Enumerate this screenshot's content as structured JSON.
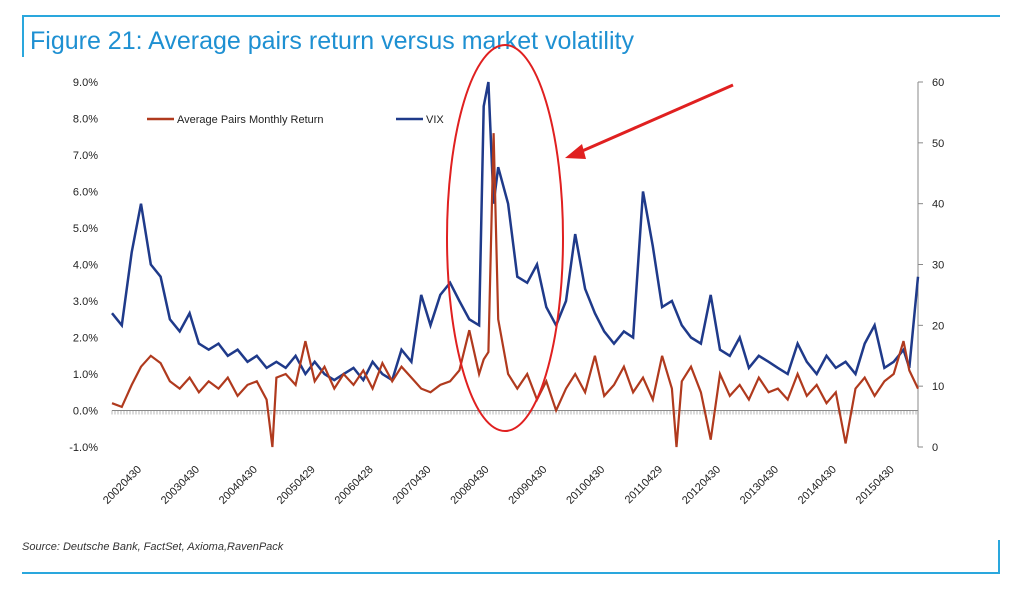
{
  "colors": {
    "accent": "#1e90d2",
    "pairs": "#b03a1e",
    "vix": "#1f3a8a",
    "annotation": "#e02020"
  },
  "chart_data": {
    "type": "line",
    "title": "Figure 21: Average pairs return versus market volatility",
    "source": "Source: Deutsche Bank, FactSet, Axioma,RavenPack",
    "x_tick_labels": [
      "20020430",
      "20030430",
      "20040430",
      "20050429",
      "20060428",
      "20070430",
      "20080430",
      "20090430",
      "20100430",
      "20110429",
      "20120430",
      "20130430",
      "20140430",
      "20150430"
    ],
    "y_left": {
      "ticks": [
        "-1.0%",
        "0.0%",
        "1.0%",
        "2.0%",
        "3.0%",
        "4.0%",
        "5.0%",
        "6.0%",
        "7.0%",
        "8.0%",
        "9.0%"
      ],
      "range": [
        -1.0,
        9.0
      ],
      "unit": "%"
    },
    "y_right": {
      "ticks": [
        "0",
        "10",
        "20",
        "30",
        "40",
        "50",
        "60"
      ],
      "range": [
        0,
        60
      ]
    },
    "x_range": [
      2002.33,
      2016.25
    ],
    "series": [
      {
        "name": "Average Pairs Monthly Return",
        "axis": "left",
        "x": [
          2002.33,
          2002.5,
          2002.67,
          2002.83,
          2003.0,
          2003.17,
          2003.33,
          2003.5,
          2003.67,
          2003.83,
          2004.0,
          2004.17,
          2004.33,
          2004.5,
          2004.67,
          2004.83,
          2005.0,
          2005.1,
          2005.17,
          2005.33,
          2005.5,
          2005.67,
          2005.83,
          2006.0,
          2006.17,
          2006.33,
          2006.5,
          2006.67,
          2006.83,
          2007.0,
          2007.17,
          2007.33,
          2007.5,
          2007.67,
          2007.83,
          2008.0,
          2008.17,
          2008.33,
          2008.5,
          2008.67,
          2008.75,
          2008.83,
          2008.92,
          2009.0,
          2009.17,
          2009.33,
          2009.5,
          2009.67,
          2009.83,
          2010.0,
          2010.17,
          2010.33,
          2010.5,
          2010.67,
          2010.83,
          2011.0,
          2011.17,
          2011.33,
          2011.5,
          2011.67,
          2011.83,
          2012.0,
          2012.08,
          2012.17,
          2012.33,
          2012.5,
          2012.67,
          2012.83,
          2013.0,
          2013.17,
          2013.33,
          2013.5,
          2013.67,
          2013.83,
          2014.0,
          2014.17,
          2014.33,
          2014.5,
          2014.67,
          2014.83,
          2015.0,
          2015.17,
          2015.33,
          2015.5,
          2015.67,
          2015.83,
          2016.0,
          2016.1,
          2016.25
        ],
        "values": [
          0.2,
          0.1,
          0.7,
          1.2,
          1.5,
          1.3,
          0.8,
          0.6,
          0.9,
          0.5,
          0.8,
          0.6,
          0.9,
          0.4,
          0.7,
          0.8,
          0.3,
          -1.0,
          0.9,
          1.0,
          0.7,
          1.9,
          0.8,
          1.2,
          0.6,
          1.0,
          0.7,
          1.1,
          0.6,
          1.3,
          0.8,
          1.2,
          0.9,
          0.6,
          0.5,
          0.7,
          0.8,
          1.1,
          2.2,
          1.0,
          1.4,
          1.6,
          7.6,
          2.5,
          1.0,
          0.6,
          1.0,
          0.3,
          0.8,
          0.0,
          0.6,
          1.0,
          0.5,
          1.5,
          0.4,
          0.7,
          1.2,
          0.5,
          0.9,
          0.3,
          1.5,
          0.6,
          -1.0,
          0.8,
          1.2,
          0.5,
          -0.8,
          1.0,
          0.4,
          0.7,
          0.3,
          0.9,
          0.5,
          0.6,
          0.3,
          1.0,
          0.4,
          0.7,
          0.2,
          0.5,
          -0.9,
          0.6,
          0.9,
          0.4,
          0.8,
          1.0,
          1.9,
          1.1,
          0.6
        ]
      },
      {
        "name": "VIX",
        "axis": "right",
        "x": [
          2002.33,
          2002.5,
          2002.67,
          2002.83,
          2003.0,
          2003.17,
          2003.33,
          2003.5,
          2003.67,
          2003.83,
          2004.0,
          2004.17,
          2004.33,
          2004.5,
          2004.67,
          2004.83,
          2005.0,
          2005.17,
          2005.33,
          2005.5,
          2005.67,
          2005.83,
          2006.0,
          2006.17,
          2006.33,
          2006.5,
          2006.67,
          2006.83,
          2007.0,
          2007.17,
          2007.33,
          2007.5,
          2007.67,
          2007.83,
          2008.0,
          2008.17,
          2008.33,
          2008.5,
          2008.67,
          2008.75,
          2008.83,
          2008.92,
          2009.0,
          2009.17,
          2009.33,
          2009.5,
          2009.67,
          2009.83,
          2010.0,
          2010.17,
          2010.33,
          2010.5,
          2010.67,
          2010.83,
          2011.0,
          2011.17,
          2011.33,
          2011.5,
          2011.67,
          2011.83,
          2012.0,
          2012.17,
          2012.33,
          2012.5,
          2012.67,
          2012.83,
          2013.0,
          2013.17,
          2013.33,
          2013.5,
          2013.67,
          2013.83,
          2014.0,
          2014.17,
          2014.33,
          2014.5,
          2014.67,
          2014.83,
          2015.0,
          2015.17,
          2015.33,
          2015.5,
          2015.67,
          2015.83,
          2016.0,
          2016.1,
          2016.25
        ],
        "values": [
          22,
          20,
          32,
          40,
          30,
          28,
          21,
          19,
          22,
          17,
          16,
          17,
          15,
          16,
          14,
          15,
          13,
          14,
          13,
          15,
          12,
          14,
          12,
          11,
          12,
          13,
          11,
          14,
          12,
          11,
          16,
          14,
          25,
          20,
          25,
          27,
          24,
          21,
          20,
          56,
          60,
          40,
          46,
          40,
          28,
          27,
          30,
          23,
          20,
          24,
          35,
          26,
          22,
          19,
          17,
          19,
          18,
          42,
          33,
          23,
          24,
          20,
          18,
          17,
          25,
          16,
          15,
          18,
          13,
          15,
          14,
          13,
          12,
          17,
          14,
          12,
          15,
          13,
          14,
          12,
          17,
          20,
          13,
          14,
          16,
          13,
          28
        ]
      }
    ],
    "legend": [
      "Average Pairs Monthly Return",
      "VIX"
    ],
    "annotations": [
      "red ellipse highlighting 2008 crisis spike",
      "red arrow pointing at spike"
    ]
  }
}
